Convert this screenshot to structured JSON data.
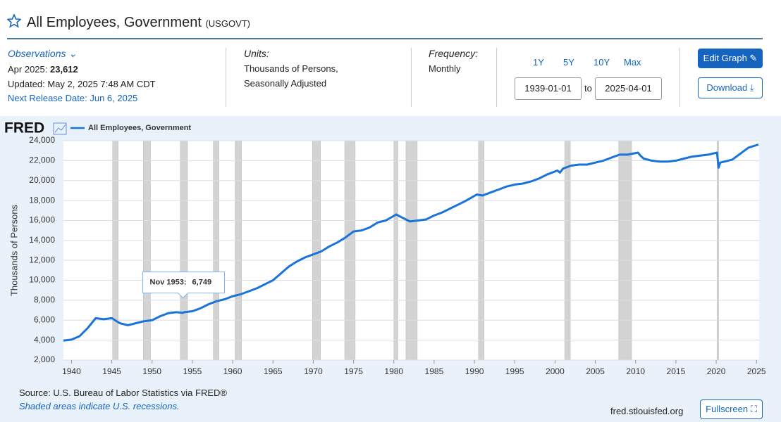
{
  "header": {
    "title": "All Employees, Government",
    "code": "(USGOVT)",
    "observations": "Observations",
    "obs_date": "Apr 2025:",
    "obs_value": "23,612",
    "updated": "Updated: May 2, 2025 7:48 AM CDT",
    "next_release": "Next Release Date: Jun 6, 2025",
    "units_label": "Units:",
    "units_1": "Thousands of Persons,",
    "units_2": "Seasonally Adjusted",
    "freq_label": "Frequency:",
    "freq": "Monthly",
    "ranges": [
      "1Y",
      "5Y",
      "10Y",
      "Max"
    ],
    "start": "1939-01-01",
    "to": "to",
    "end": "2025-04-01",
    "edit": "Edit Graph",
    "download": "Download"
  },
  "chart_data": {
    "type": "line",
    "logo": "FRED",
    "ylabel": "Thousands of Persons",
    "series": [
      {
        "name": "All Employees, Government",
        "color": "#1a73d9",
        "x": [
          1939,
          1940,
          1941,
          1942,
          1943,
          1944,
          1945,
          1946,
          1947,
          1948,
          1949,
          1950,
          1951,
          1952,
          1953,
          1953.83,
          1954,
          1955,
          1956,
          1957,
          1958,
          1959,
          1960,
          1961,
          1962,
          1963,
          1964,
          1965,
          1966,
          1967,
          1968,
          1969,
          1970,
          1971,
          1972,
          1973,
          1974,
          1975,
          1976,
          1977,
          1978,
          1979,
          1980.3,
          1981,
          1982,
          1983,
          1984,
          1985,
          1986,
          1987,
          1988,
          1989,
          1990.3,
          1991,
          1992,
          1993,
          1994,
          1995,
          1996,
          1997,
          1998,
          1999,
          2000.3,
          2000.6,
          2001,
          2002,
          2003,
          2004,
          2005,
          2006,
          2007,
          2008,
          2009,
          2010.3,
          2010.6,
          2011,
          2012,
          2013,
          2014,
          2015,
          2016,
          2017,
          2018,
          2019,
          2020.1,
          2020.3,
          2020.5,
          2021,
          2022,
          2023,
          2024,
          2025.25
        ],
        "values": [
          3950,
          4050,
          4400,
          5200,
          6200,
          6100,
          6200,
          5700,
          5500,
          5700,
          5900,
          6000,
          6400,
          6700,
          6800,
          6749,
          6800,
          6900,
          7200,
          7600,
          7900,
          8100,
          8400,
          8600,
          8900,
          9200,
          9600,
          10000,
          10700,
          11400,
          11900,
          12300,
          12600,
          12900,
          13400,
          13800,
          14300,
          14900,
          15000,
          15300,
          15800,
          16000,
          16600,
          16300,
          15900,
          16000,
          16100,
          16500,
          16800,
          17200,
          17600,
          18000,
          18600,
          18500,
          18800,
          19100,
          19400,
          19600,
          19700,
          19900,
          20200,
          20600,
          21000,
          20800,
          21200,
          21500,
          21600,
          21600,
          21800,
          22000,
          22300,
          22600,
          22600,
          22800,
          22500,
          22200,
          22000,
          21900,
          21900,
          22000,
          22200,
          22400,
          22500,
          22600,
          22800,
          21300,
          21800,
          21900,
          22100,
          22700,
          23300,
          23612
        ]
      }
    ],
    "recessions": [
      [
        1945.1,
        1945.8
      ],
      [
        1948.9,
        1949.8
      ],
      [
        1953.5,
        1954.4
      ],
      [
        1957.6,
        1958.3
      ],
      [
        1960.3,
        1961.1
      ],
      [
        1969.9,
        1970.9
      ],
      [
        1973.9,
        1975.2
      ],
      [
        1980.0,
        1980.5
      ],
      [
        1981.5,
        1982.9
      ],
      [
        1990.5,
        1991.2
      ],
      [
        2001.2,
        2001.9
      ],
      [
        2007.9,
        2009.5
      ],
      [
        2020.1,
        2020.3
      ]
    ],
    "xlim": [
      1939,
      2025.33
    ],
    "xticks": [
      1940,
      1945,
      1950,
      1955,
      1960,
      1965,
      1970,
      1975,
      1980,
      1985,
      1990,
      1995,
      2000,
      2005,
      2010,
      2015,
      2020,
      2025
    ],
    "ylim": [
      2000,
      24000
    ],
    "yticks": [
      {
        "value": 2000,
        "label": "2,000"
      },
      {
        "value": 4000,
        "label": "4,000"
      },
      {
        "value": 6000,
        "label": "6,000"
      },
      {
        "value": 8000,
        "label": "8,000"
      },
      {
        "value": 10000,
        "label": "10,000"
      },
      {
        "value": 12000,
        "label": "12,000"
      },
      {
        "value": 14000,
        "label": "14,000"
      },
      {
        "value": 16000,
        "label": "16,000"
      },
      {
        "value": 18000,
        "label": "18,000"
      },
      {
        "value": 20000,
        "label": "20,000"
      },
      {
        "value": 22000,
        "label": "22,000"
      },
      {
        "value": 24000,
        "label": "24,000"
      }
    ],
    "grid": true,
    "tooltip": {
      "date": "Nov 1953:",
      "value": 6749,
      "value_label": "6,749",
      "x": 1953.83
    },
    "source": "Source: U.S. Bureau of Labor Statistics via FRED®",
    "note": "Shaded areas indicate U.S. recessions.",
    "site": "fred.stlouisfed.org",
    "fullscreen": "Fullscreen"
  }
}
